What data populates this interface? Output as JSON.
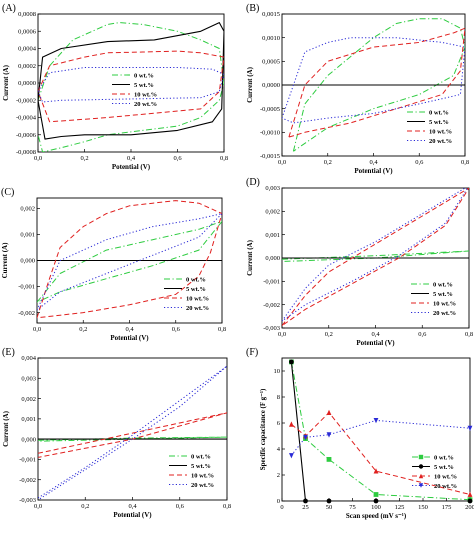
{
  "colors": {
    "0 wt.%": "#2ecc40",
    "5 wt.%": "#000000",
    "10 wt.%": "#e0201f",
    "20 wt.%": "#2a2ad6"
  },
  "chart_data": [
    {
      "panel": "(A)",
      "type": "line",
      "subtype": "cyclic-voltammetry",
      "xlabel": "Potential (V)",
      "ylabel": "Current (A)",
      "xlim": [
        0.0,
        0.8
      ],
      "ylim": [
        -0.0008,
        0.0008
      ],
      "xticks": [
        0.0,
        0.2,
        0.4,
        0.6,
        0.8
      ],
      "yticks": [
        -0.0008,
        -0.0006,
        -0.0004,
        -0.0002,
        0.0,
        0.0002,
        0.0004,
        0.0006,
        0.0008
      ],
      "xtick_labels": [
        "0,0",
        "0,2",
        "0,4",
        "0,6",
        "0,8"
      ],
      "ytick_labels": [
        "-0,0008",
        "-0,0006",
        "-0,0004",
        "-0,0002",
        "0,0000",
        "0,0002",
        "0,0004",
        "0,0006",
        "0,0008"
      ],
      "legend": "center-right",
      "series": [
        {
          "name": "0 wt.%",
          "style": "dashdot",
          "x": [
            0.0,
            0.05,
            0.15,
            0.3,
            0.35,
            0.45,
            0.6,
            0.7,
            0.78,
            0.8,
            0.78,
            0.7,
            0.6,
            0.45,
            0.3,
            0.2,
            0.1,
            0.02,
            0.0
          ],
          "y": [
            -0.0002,
            0.0002,
            0.0005,
            0.00068,
            0.0007,
            0.00068,
            0.0006,
            0.0005,
            0.0004,
            0.0,
            -0.0002,
            -0.0004,
            -0.0005,
            -0.00055,
            -0.0006,
            -0.00068,
            -0.00075,
            -0.0008,
            -0.0006
          ]
        },
        {
          "name": "5 wt.%",
          "style": "solid",
          "x": [
            0.0,
            0.02,
            0.1,
            0.3,
            0.5,
            0.7,
            0.78,
            0.8,
            0.79,
            0.75,
            0.6,
            0.4,
            0.2,
            0.1,
            0.03,
            0.0
          ],
          "y": [
            -0.0002,
            0.0003,
            0.0004,
            0.00048,
            0.0005,
            0.0006,
            0.0007,
            0.0006,
            -0.0003,
            -0.00045,
            -0.00055,
            -0.0006,
            -0.0006,
            -0.00062,
            -0.00065,
            -0.0002
          ]
        },
        {
          "name": "10 wt.%",
          "style": "dashed",
          "x": [
            0.0,
            0.05,
            0.2,
            0.3,
            0.45,
            0.6,
            0.7,
            0.8,
            0.78,
            0.7,
            0.5,
            0.3,
            0.15,
            0.05,
            0.0
          ],
          "y": [
            -0.0001,
            0.0002,
            0.0003,
            0.00035,
            0.00036,
            0.00037,
            0.00035,
            0.0003,
            -0.0001,
            -0.0003,
            -0.00035,
            -0.0004,
            -0.00043,
            -0.00045,
            -0.0001
          ]
        },
        {
          "name": "20 wt.%",
          "style": "dotted",
          "x": [
            0.0,
            0.05,
            0.2,
            0.4,
            0.6,
            0.75,
            0.8,
            0.78,
            0.7,
            0.5,
            0.3,
            0.1,
            0.02,
            0.0
          ],
          "y": [
            -0.0001,
            0.00012,
            0.00018,
            0.00018,
            0.00018,
            0.00016,
            0.0001,
            -0.0001,
            -0.00017,
            -0.00018,
            -0.00019,
            -0.0002,
            -0.00022,
            -0.0001
          ]
        }
      ]
    },
    {
      "panel": "(B)",
      "type": "line",
      "subtype": "cyclic-voltammetry",
      "xlabel": "Potential (V)",
      "ylabel": "Current (A)",
      "xlim": [
        0.0,
        0.8
      ],
      "ylim": [
        -0.0015,
        0.0015
      ],
      "xticks": [
        0.0,
        0.2,
        0.4,
        0.6,
        0.8
      ],
      "yticks": [
        -0.0015,
        -0.001,
        -0.0005,
        0.0,
        0.0005,
        0.001,
        0.0015
      ],
      "xtick_labels": [
        "0,0",
        "0,2",
        "0,4",
        "0,6",
        "0,8"
      ],
      "ytick_labels": [
        "-0,0015",
        "-0,0010",
        "-0,0005",
        "0,0000",
        "0,0005",
        "0,0010",
        "0,0015"
      ],
      "legend": "bottom-right",
      "series": [
        {
          "name": "0 wt.%",
          "style": "dashdot",
          "x": [
            0.05,
            0.1,
            0.2,
            0.3,
            0.4,
            0.5,
            0.6,
            0.7,
            0.78,
            0.8,
            0.75,
            0.6,
            0.4,
            0.2,
            0.08,
            0.05
          ],
          "y": [
            -0.0014,
            -0.0004,
            0.0002,
            0.0006,
            0.001,
            0.0013,
            0.0014,
            0.0014,
            0.0012,
            0.0008,
            0.0002,
            -0.0002,
            -0.0005,
            -0.0009,
            -0.0013,
            -0.0014
          ]
        },
        {
          "name": "5 wt.%",
          "style": "solid",
          "x": [
            0.0,
            0.8
          ],
          "y": [
            0.0,
            0.0
          ]
        },
        {
          "name": "10 wt.%",
          "style": "dashed",
          "x": [
            0.03,
            0.1,
            0.2,
            0.4,
            0.6,
            0.75,
            0.8,
            0.78,
            0.7,
            0.5,
            0.3,
            0.1,
            0.03
          ],
          "y": [
            -0.0011,
            0.0,
            0.0005,
            0.0008,
            0.0009,
            0.0011,
            0.0012,
            0.0003,
            -0.0002,
            -0.0005,
            -0.0008,
            -0.001,
            -0.0011
          ]
        },
        {
          "name": "20 wt.%",
          "style": "dotted",
          "x": [
            0.0,
            0.1,
            0.2,
            0.3,
            0.5,
            0.7,
            0.8,
            0.78,
            0.6,
            0.4,
            0.2,
            0.05,
            0.0
          ],
          "y": [
            -0.0007,
            0.0007,
            0.0009,
            0.001,
            0.001,
            0.0009,
            0.0008,
            -0.0002,
            -0.0004,
            -0.0006,
            -0.0007,
            -0.0008,
            -0.0007
          ]
        }
      ]
    },
    {
      "panel": "(C)",
      "type": "line",
      "subtype": "cyclic-voltammetry",
      "xlabel": "Potential (V)",
      "ylabel": "Current (A)",
      "xlim": [
        0.0,
        0.8
      ],
      "ylim": [
        -0.0024,
        0.0024
      ],
      "xticks": [
        0.0,
        0.2,
        0.4,
        0.6,
        0.8
      ],
      "yticks": [
        -0.002,
        -0.001,
        0.0,
        0.001,
        0.002
      ],
      "xtick_labels": [
        "0,0",
        "0,2",
        "0,4",
        "0,6",
        "0,8"
      ],
      "ytick_labels": [
        "-0,002",
        "-0,001",
        "0,000",
        "0,001",
        "0,002"
      ],
      "legend": "bottom-right",
      "series": [
        {
          "name": "0 wt.%",
          "style": "dashdot",
          "x": [
            0.0,
            0.1,
            0.3,
            0.5,
            0.7,
            0.8,
            0.7,
            0.5,
            0.3,
            0.1,
            0.0
          ],
          "y": [
            -0.0016,
            -0.0005,
            0.0004,
            0.0008,
            0.0012,
            0.0015,
            0.0004,
            -0.0002,
            -0.0007,
            -0.0012,
            -0.0016
          ]
        },
        {
          "name": "5 wt.%",
          "style": "solid",
          "x": [
            0.0,
            0.8
          ],
          "y": [
            0.0,
            0.0
          ]
        },
        {
          "name": "10 wt.%",
          "style": "dashed",
          "x": [
            0.0,
            0.05,
            0.1,
            0.2,
            0.3,
            0.4,
            0.5,
            0.6,
            0.7,
            0.8,
            0.75,
            0.7,
            0.6,
            0.4,
            0.2,
            0.0
          ],
          "y": [
            -0.0022,
            -0.0008,
            0.0005,
            0.0013,
            0.0018,
            0.0021,
            0.0022,
            0.0023,
            0.0022,
            0.0018,
            0.0003,
            -0.0006,
            -0.0013,
            -0.0017,
            -0.002,
            -0.0022
          ]
        },
        {
          "name": "20 wt.%",
          "style": "dotted",
          "x": [
            0.0,
            0.1,
            0.3,
            0.5,
            0.7,
            0.8,
            0.7,
            0.5,
            0.3,
            0.1,
            0.0
          ],
          "y": [
            -0.0019,
            0.0,
            0.0008,
            0.0013,
            0.0016,
            0.0018,
            0.0009,
            0.0002,
            -0.0005,
            -0.0012,
            -0.0019
          ]
        }
      ]
    },
    {
      "panel": "(D)",
      "type": "line",
      "subtype": "cyclic-voltammetry",
      "xlabel": "Potential (V)",
      "ylabel": "Current (A)",
      "xlim": [
        0.0,
        0.8
      ],
      "ylim": [
        -0.003,
        0.003
      ],
      "xticks": [
        0.0,
        0.2,
        0.4,
        0.6,
        0.8
      ],
      "yticks": [
        -0.003,
        -0.002,
        -0.001,
        0.0,
        0.001,
        0.002,
        0.003
      ],
      "xtick_labels": [
        "0,0",
        "0,2",
        "0,4",
        "0,6",
        "0,8"
      ],
      "ytick_labels": [
        "-0,003",
        "-0,002",
        "-0,001",
        "0,000",
        "0,001",
        "0,002",
        "0,003"
      ],
      "legend": "bottom-right",
      "series": [
        {
          "name": "0 wt.%",
          "style": "dashdot",
          "x": [
            0.0,
            0.4,
            0.8,
            0.4,
            0.0
          ],
          "y": [
            -5e-05,
            0.0001,
            0.0003,
            0.0,
            -0.00015
          ]
        },
        {
          "name": "5 wt.%",
          "style": "solid",
          "x": [
            0.0,
            0.8
          ],
          "y": [
            0.0,
            0.0
          ]
        },
        {
          "name": "10 wt.%",
          "style": "dashed",
          "x": [
            0.0,
            0.1,
            0.2,
            0.4,
            0.6,
            0.8,
            0.7,
            0.5,
            0.3,
            0.1,
            0.0
          ],
          "y": [
            -0.0029,
            -0.0016,
            -0.0006,
            0.0006,
            0.0018,
            0.003,
            0.0014,
            0.0,
            -0.0011,
            -0.0022,
            -0.0029
          ]
        },
        {
          "name": "20 wt.%",
          "style": "dotted",
          "x": [
            0.0,
            0.1,
            0.2,
            0.4,
            0.6,
            0.8,
            0.7,
            0.5,
            0.3,
            0.1,
            0.0
          ],
          "y": [
            -0.0027,
            -0.0013,
            -0.0003,
            0.0007,
            0.0019,
            0.0031,
            0.0015,
            0.0001,
            -0.001,
            -0.002,
            -0.0027
          ]
        }
      ]
    },
    {
      "panel": "(E)",
      "type": "line",
      "subtype": "cyclic-voltammetry",
      "xlabel": "Potential (V)",
      "ylabel": "Current (A)",
      "xlim": [
        0.0,
        0.8
      ],
      "ylim": [
        -0.003,
        0.004
      ],
      "xticks": [
        0.0,
        0.2,
        0.4,
        0.6,
        0.8
      ],
      "yticks": [
        -0.003,
        -0.002,
        -0.001,
        0.0,
        0.001,
        0.002,
        0.003,
        0.004
      ],
      "xtick_labels": [
        "0,0",
        "0,2",
        "0,4",
        "0,6",
        "0,8"
      ],
      "ytick_labels": [
        "-0,003",
        "-0,002",
        "-0,001",
        "0,000",
        "0,001",
        "0,002",
        "0,003",
        "0,004"
      ],
      "legend": "bottom-right",
      "series": [
        {
          "name": "0 wt.%",
          "style": "dashdot",
          "x": [
            0.0,
            0.4,
            0.8,
            0.4,
            0.0
          ],
          "y": [
            -5e-05,
            5e-05,
            0.0001,
            0.0,
            -0.0001
          ]
        },
        {
          "name": "5 wt.%",
          "style": "solid",
          "x": [
            0.0,
            0.8
          ],
          "y": [
            0.0,
            0.0
          ]
        },
        {
          "name": "10 wt.%",
          "style": "dashed",
          "x": [
            0.0,
            0.4,
            0.8,
            0.4,
            0.0
          ],
          "y": [
            -0.0007,
            0.0003,
            0.0013,
            0.0,
            -0.0009
          ]
        },
        {
          "name": "20 wt.%",
          "style": "dotted",
          "x": [
            0.0,
            0.2,
            0.4,
            0.6,
            0.8,
            0.6,
            0.4,
            0.2,
            0.0
          ],
          "y": [
            -0.0029,
            -0.0014,
            0.0002,
            0.0019,
            0.0036,
            0.0016,
            0.0,
            -0.0015,
            -0.003
          ]
        }
      ]
    },
    {
      "panel": "(F)",
      "type": "line",
      "subtype": "markers",
      "xlabel": "Scan speed (mV s⁻¹)",
      "ylabel": "Specific capacitance (F g⁻¹)",
      "xlim": [
        0,
        200
      ],
      "ylim": [
        0,
        11
      ],
      "xticks": [
        0,
        25,
        50,
        75,
        100,
        125,
        150,
        175,
        200
      ],
      "yticks": [
        0,
        2,
        4,
        6,
        8,
        10
      ],
      "xtick_labels": [
        "0",
        "25",
        "50",
        "75",
        "100",
        "125",
        "150",
        "175",
        "200"
      ],
      "ytick_labels": [
        "0",
        "2",
        "4",
        "6",
        "8",
        "10"
      ],
      "legend": "bottom-right",
      "x": [
        10,
        25,
        50,
        100,
        200
      ],
      "series": [
        {
          "name": "0 wt.%",
          "style": "dashdot",
          "marker": "square",
          "values": [
            10.7,
            4.8,
            3.2,
            0.5,
            0.1
          ]
        },
        {
          "name": "5 wt.%",
          "style": "solid",
          "marker": "circle",
          "values": [
            10.7,
            0.0,
            0.0,
            0.0,
            0.0
          ]
        },
        {
          "name": "10 wt.%",
          "style": "dashed",
          "marker": "triangle-up",
          "values": [
            5.9,
            5.0,
            6.8,
            2.3,
            0.5
          ]
        },
        {
          "name": "20 wt.%",
          "style": "dotted",
          "marker": "triangle-down",
          "values": [
            3.5,
            4.9,
            5.1,
            6.2,
            5.6
          ]
        }
      ]
    }
  ]
}
